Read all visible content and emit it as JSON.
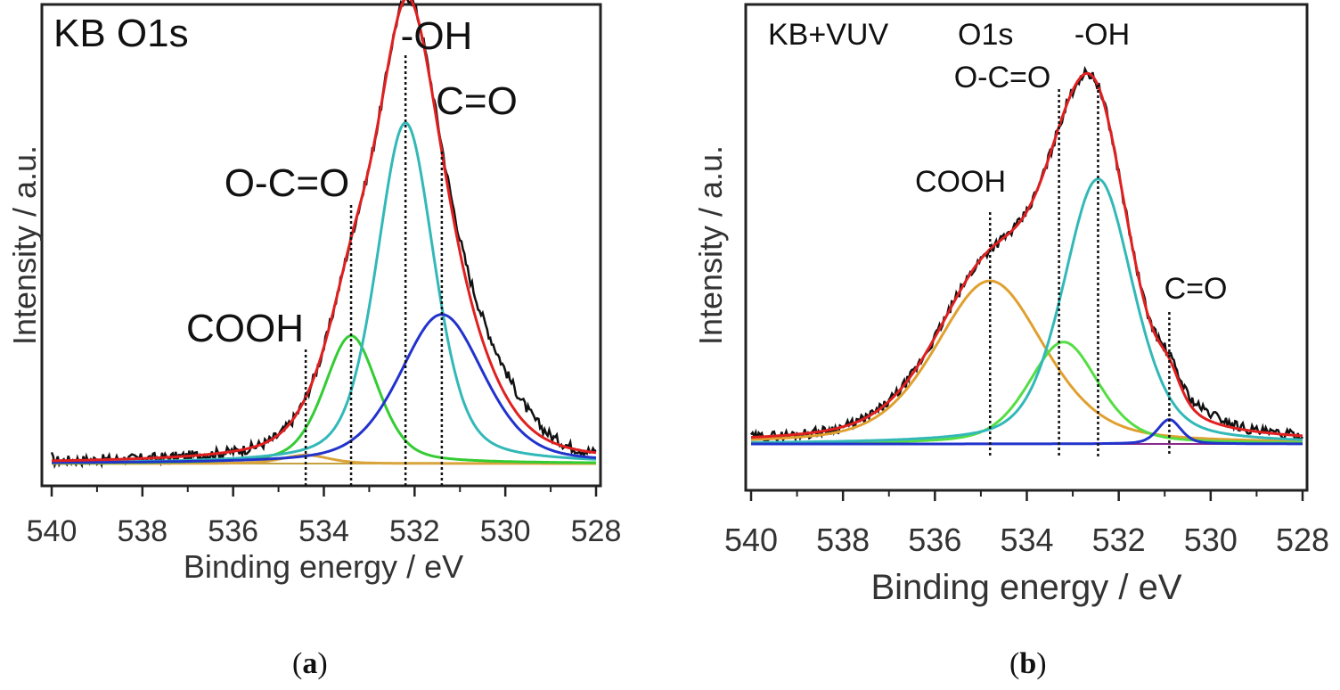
{
  "chart_data": [
    {
      "type": "line",
      "panel_title": "KB O1s",
      "xlabel": "Binding energy / eV",
      "ylabel": "Intensity / a.u.",
      "xlim": [
        540,
        528
      ],
      "ylim": [
        0,
        1.05
      ],
      "xticks": [
        "540",
        "538",
        "536",
        "534",
        "532",
        "530",
        "528"
      ],
      "baseline": 0.05,
      "components": [
        {
          "name": "COOH",
          "center": 534.4,
          "height": 0.02,
          "fwhm": 1.2,
          "color": "#d9a43b"
        },
        {
          "name": "O-C=O",
          "center": 533.4,
          "height": 0.3,
          "fwhm": 1.4,
          "color": "#33cc33"
        },
        {
          "name": "-OH",
          "center": 532.2,
          "height": 0.8,
          "fwhm": 1.5,
          "color": "#33b8b8"
        },
        {
          "name": "C=O",
          "center": 531.4,
          "height": 0.35,
          "fwhm": 2.2,
          "color": "#2233cc"
        }
      ],
      "envelope_color": "#e02020",
      "data_color": "#111111",
      "annotations": [
        {
          "text": "-OH",
          "x": 532.2
        },
        {
          "text": "C=O",
          "x": 531.4
        },
        {
          "text": "O-C=O",
          "x": 533.4
        },
        {
          "text": "COOH",
          "x": 534.4
        }
      ]
    },
    {
      "type": "line",
      "panel_title": "KB+VUV",
      "panel_subtitle": "O1s",
      "xlabel": "Binding energy / eV",
      "ylabel": "Intensity / a.u.",
      "xlim": [
        540,
        528
      ],
      "ylim": [
        0,
        1.05
      ],
      "xticks": [
        "540",
        "538",
        "536",
        "534",
        "532",
        "530",
        "528"
      ],
      "baseline": 0.12,
      "components": [
        {
          "name": "COOH",
          "center": 534.8,
          "height": 0.4,
          "fwhm": 2.8,
          "color": "#e0a030"
        },
        {
          "name": "O-C=O",
          "center": 533.2,
          "height": 0.25,
          "fwhm": 1.8,
          "color": "#55dd44"
        },
        {
          "name": "-OH",
          "center": 532.45,
          "height": 0.65,
          "fwhm": 1.8,
          "color": "#33b8b8"
        },
        {
          "name": "C=O",
          "center": 530.9,
          "height": 0.06,
          "fwhm": 0.6,
          "color": "#2233cc"
        }
      ],
      "envelope_color": "#e02020",
      "data_color": "#111111",
      "annotations": [
        {
          "text": "-OH",
          "x": 532.45
        },
        {
          "text": "O-C=O",
          "x": 533.3
        },
        {
          "text": "COOH",
          "x": 534.8
        },
        {
          "text": "C=O",
          "x": 530.9
        }
      ]
    }
  ],
  "captions": {
    "a": "a",
    "b": "b"
  }
}
